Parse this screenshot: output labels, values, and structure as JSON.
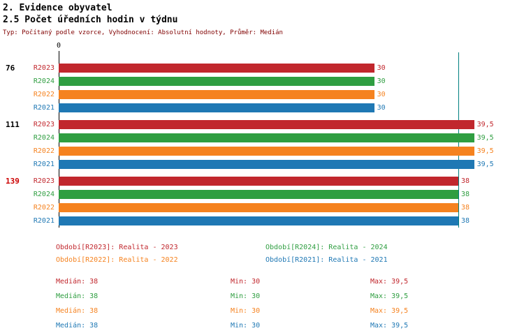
{
  "header": {
    "title_line1": "2. Evidence obyvatel",
    "title_line2": "2.5 Počet úředních hodin v týdnu",
    "subtitle": "Typ: Počítaný podle vzorce, Vyhodnocení: Absolutní hodnoty, Průměr: Medián"
  },
  "chart_data": {
    "type": "bar",
    "orientation": "horizontal",
    "title": "2.5 Počet úředních hodin v týdnu",
    "x_axis": {
      "zero_label": "0",
      "min": 0,
      "max": 39.5
    },
    "median_line": {
      "value": 38,
      "color": "#007f7f"
    },
    "periods": [
      {
        "id": "R2023",
        "label": "R2023",
        "color": "#c1272d"
      },
      {
        "id": "R2024",
        "label": "R2024",
        "color": "#2f9e41"
      },
      {
        "id": "R2022",
        "label": "R2022",
        "color": "#f5821f"
      },
      {
        "id": "R2021",
        "label": "R2021",
        "color": "#1f78b4"
      }
    ],
    "groups": [
      {
        "label": "76",
        "label_color": "#000000",
        "values": [
          30,
          30,
          30,
          30
        ],
        "display_values": [
          "30",
          "30",
          "30",
          "30"
        ]
      },
      {
        "label": "111",
        "label_color": "#000000",
        "values": [
          39.5,
          39.5,
          39.5,
          39.5
        ],
        "display_values": [
          "39,5",
          "39,5",
          "39,5",
          "39,5"
        ]
      },
      {
        "label": "139",
        "label_color": "#cc0000",
        "values": [
          38,
          38,
          38,
          38
        ],
        "display_values": [
          "38",
          "38",
          "38",
          "38"
        ]
      }
    ]
  },
  "legend": {
    "items": [
      {
        "label": "Období[R2023]: Realita - 2023",
        "color": "#c1272d"
      },
      {
        "label": "Období[R2024]: Realita - 2024",
        "color": "#2f9e41"
      },
      {
        "label": "Období[R2022]: Realita - 2022",
        "color": "#f5821f"
      },
      {
        "label": "Období[R2021]: Realita - 2021",
        "color": "#1f78b4"
      }
    ]
  },
  "stats": {
    "rows": [
      {
        "color": "#c1272d",
        "median": "Medián: 38",
        "min": "Min: 30",
        "max": "Max: 39,5"
      },
      {
        "color": "#2f9e41",
        "median": "Medián: 38",
        "min": "Min: 30",
        "max": "Max: 39,5"
      },
      {
        "color": "#f5821f",
        "median": "Medián: 38",
        "min": "Min: 30",
        "max": "Max: 39,5"
      },
      {
        "color": "#1f78b4",
        "median": "Medián: 38",
        "min": "Min: 30",
        "max": "Max: 39,5"
      }
    ]
  }
}
